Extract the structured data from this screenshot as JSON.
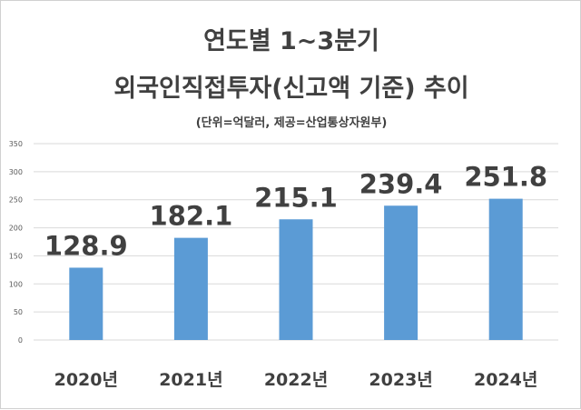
{
  "chart_data": {
    "type": "bar",
    "title_line1": "연도별 1~3분기",
    "title_line2": "외국인직접투자(신고액 기준) 추이",
    "subtitle": "(단위=억달러, 제공=산업통상자원부)",
    "categories": [
      "2020년",
      "2021년",
      "2022년",
      "2023년",
      "2024년"
    ],
    "values": [
      128.9,
      182.1,
      215.1,
      239.4,
      251.8
    ],
    "data_labels": [
      "128.9",
      "182.1",
      "215.1",
      "239.4",
      "251.8"
    ],
    "ylim": [
      0,
      350
    ],
    "yticks": [
      0,
      50,
      100,
      150,
      200,
      250,
      300,
      350
    ],
    "ytick_labels": [
      "0",
      "50",
      "100",
      "150",
      "200",
      "250",
      "300",
      "350"
    ],
    "grid": true,
    "bar_color": "#5b9bd5",
    "grid_color": "#d9d9d9",
    "text_color": "#404040"
  }
}
